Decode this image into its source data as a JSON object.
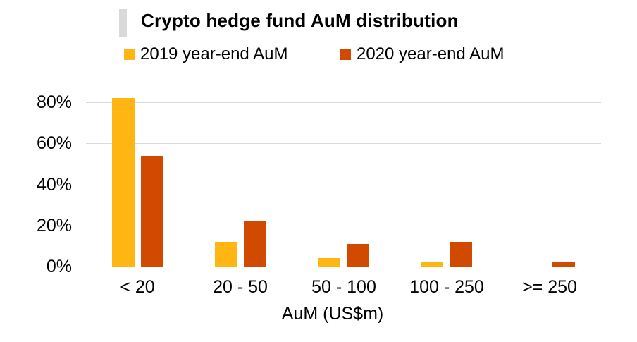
{
  "chart_data": {
    "type": "bar",
    "title": "Crypto hedge fund AuM distribution",
    "xlabel": "AuM (US$m)",
    "ylabel": "",
    "categories": [
      "< 20",
      "20 - 50",
      "50 - 100",
      "100 - 250",
      ">= 250"
    ],
    "series": [
      {
        "name": "2019 year-end AuM",
        "color": "#FFB612",
        "values": [
          82,
          12,
          4,
          2,
          0
        ]
      },
      {
        "name": "2020 year-end AuM",
        "color": "#D04A02",
        "values": [
          54,
          22,
          11,
          12,
          2
        ]
      }
    ],
    "y_ticks": [
      0,
      20,
      40,
      60,
      80
    ],
    "y_tick_labels": [
      "0%",
      "20%",
      "40%",
      "60%",
      "80%"
    ],
    "ylim": [
      0,
      88
    ],
    "grid": "horizontal",
    "legend_position": "top"
  },
  "colors": {
    "background": "#FFFFFF",
    "text": "#000000",
    "title_accent_bar": "#D9D9D9",
    "gridline": "#D9D9D9",
    "axis_line": "#BFBFBF",
    "series_2019": "#FFB612",
    "series_2020": "#D04A02"
  }
}
